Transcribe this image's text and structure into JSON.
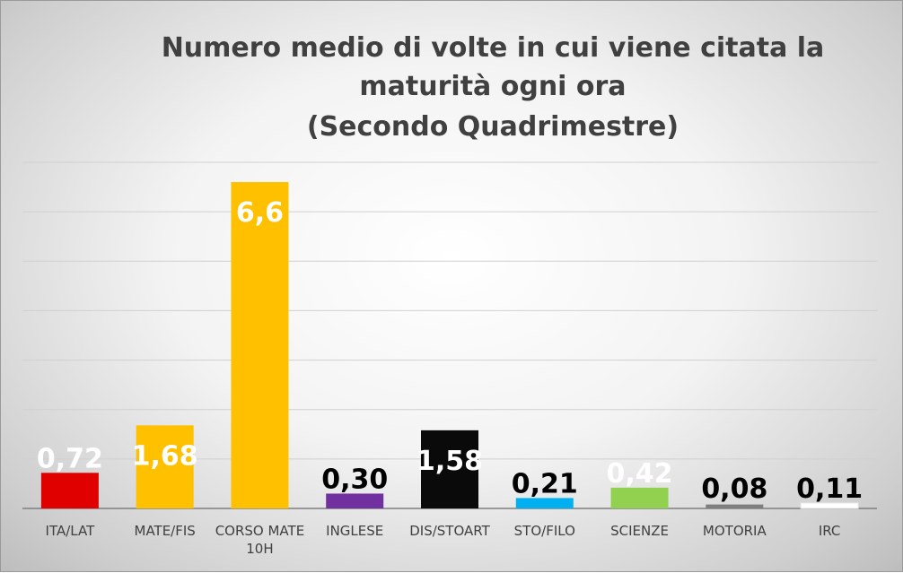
{
  "chart_data": {
    "type": "bar",
    "title_lines": [
      "Numero medio di volte in cui viene citata la",
      "maturità ogni ora",
      "(Secondo Quadrimestre)"
    ],
    "categories": [
      [
        "ITA/LAT"
      ],
      [
        "MATE/FIS"
      ],
      [
        "CORSO MATE",
        "10H"
      ],
      [
        "INGLESE"
      ],
      [
        "DIS/STOART"
      ],
      [
        "STO/FILO"
      ],
      [
        "SCIENZE"
      ],
      [
        "MOTORIA"
      ],
      [
        "IRC"
      ]
    ],
    "values": [
      0.72,
      1.68,
      6.6,
      0.3,
      1.58,
      0.21,
      0.42,
      0.08,
      0.11
    ],
    "value_labels": [
      "0,72",
      "1,68",
      "6,6",
      "0,30",
      "1,58",
      "0,21",
      "0,42",
      "0,08",
      "0,11"
    ],
    "bar_colors": [
      "#e00000",
      "#ffc000",
      "#ffc000",
      "#7030a0",
      "#0a0a0a",
      "#00b0f0",
      "#92d050",
      "#7f7f7f",
      "#ffffff"
    ],
    "label_colors": [
      "#ffffff",
      "#ffffff",
      "#ffffff",
      "#000000",
      "#ffffff",
      "#000000",
      "#ffffff",
      "#000000",
      "#000000"
    ],
    "ylim": [
      0,
      7
    ],
    "grid": true,
    "legend": "none"
  }
}
